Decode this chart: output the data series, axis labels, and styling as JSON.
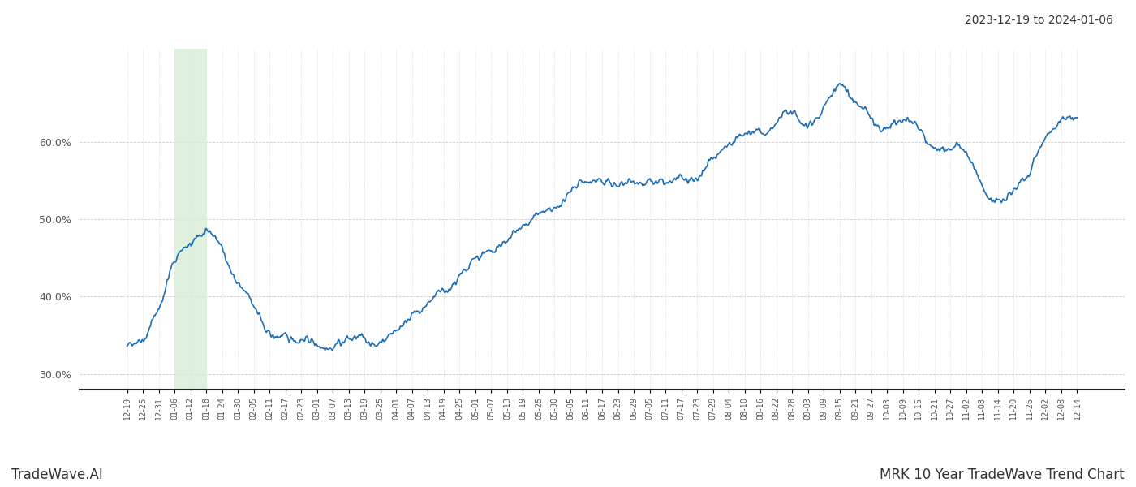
{
  "title_top_right": "2023-12-19 to 2024-01-06",
  "title_bottom_left": "TradeWave.AI",
  "title_bottom_right": "MRK 10 Year TradeWave Trend Chart",
  "line_color": "#1f6eb5",
  "line_width": 1.2,
  "highlight_color": "#d8edd8",
  "highlight_alpha": 0.8,
  "ylim": [
    28.0,
    72.0
  ],
  "yticks": [
    30.0,
    40.0,
    50.0,
    60.0
  ],
  "background_color": "#ffffff",
  "grid_color": "#cccccc",
  "x_labels": [
    "12-19",
    "12-25",
    "12-31",
    "01-06",
    "01-12",
    "01-18",
    "01-24",
    "01-30",
    "02-05",
    "02-11",
    "02-17",
    "02-23",
    "03-01",
    "03-07",
    "03-13",
    "03-19",
    "03-25",
    "04-01",
    "04-07",
    "04-13",
    "04-19",
    "04-25",
    "05-01",
    "05-07",
    "05-13",
    "05-19",
    "05-25",
    "05-30",
    "06-05",
    "06-11",
    "06-17",
    "06-23",
    "06-29",
    "07-05",
    "07-11",
    "07-17",
    "07-23",
    "07-29",
    "08-04",
    "08-10",
    "08-16",
    "08-22",
    "08-28",
    "09-03",
    "09-09",
    "09-15",
    "09-21",
    "09-27",
    "10-03",
    "10-09",
    "10-15",
    "10-21",
    "10-27",
    "11-02",
    "11-08",
    "11-14",
    "11-20",
    "11-26",
    "12-02",
    "12-08",
    "12-14"
  ],
  "highlight_start_label": "01-06",
  "highlight_end_label": "01-18"
}
